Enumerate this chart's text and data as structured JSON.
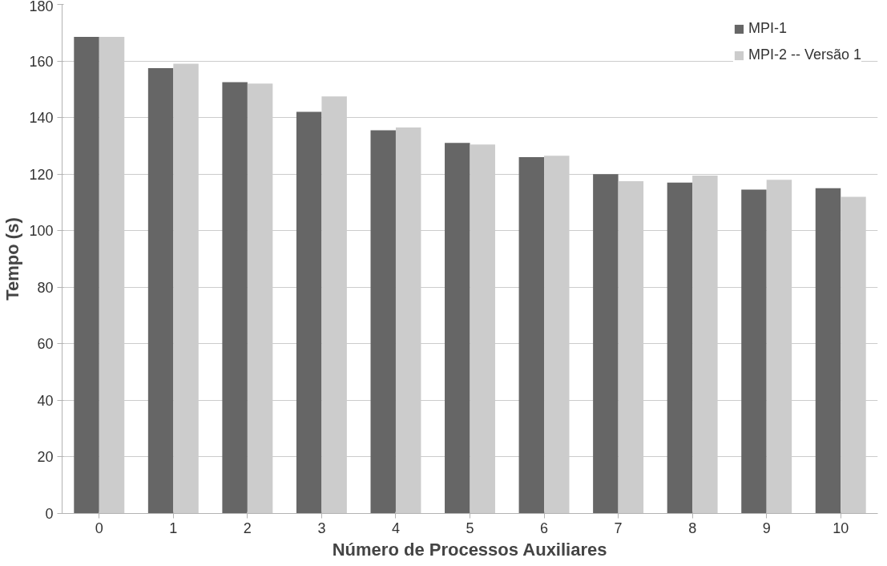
{
  "chart_data": {
    "type": "bar",
    "xlabel": "Número de Processos Auxiliares",
    "ylabel": "Tempo (s)",
    "categories": [
      "0",
      "1",
      "2",
      "3",
      "4",
      "5",
      "6",
      "7",
      "8",
      "9",
      "10"
    ],
    "series": [
      {
        "name": "MPI-1",
        "color": "#666666",
        "values": [
          168.5,
          157.5,
          152.5,
          142,
          135.5,
          131,
          126,
          120,
          117,
          114.5,
          115
        ]
      },
      {
        "name": "MPI-2 -- Versão 1",
        "color": "#cccccc",
        "values": [
          168.5,
          159,
          152,
          147.5,
          136.5,
          130.5,
          126.5,
          117.5,
          119.5,
          118,
          112
        ]
      }
    ],
    "ylim": [
      0,
      180
    ],
    "yticks": [
      0,
      20,
      40,
      60,
      80,
      100,
      120,
      140,
      160,
      180
    ],
    "grid": "y",
    "legend": "top right"
  }
}
